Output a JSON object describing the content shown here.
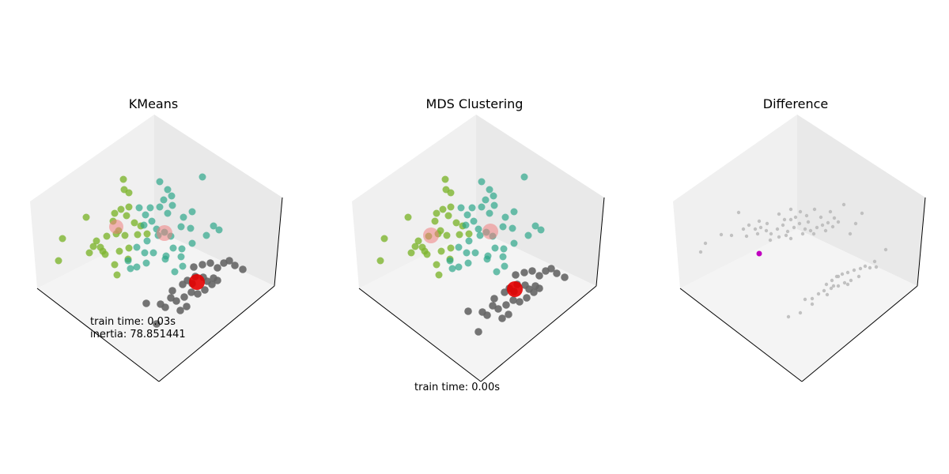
{
  "chart_data": [
    {
      "type": "scatter",
      "projection": "3d",
      "title": "KMeans",
      "annotations": [
        "train time: 0.03s",
        "inertia: 78.851441"
      ],
      "cluster_colors": [
        "#7eb530",
        "#2ea68a",
        "#666666"
      ],
      "center_colors": [
        "#f4a3a3",
        "#f4a3a3",
        "#e60000"
      ],
      "grid": false
    },
    {
      "type": "scatter",
      "projection": "3d",
      "title": "MDS Clustering",
      "annotations": [
        "train time: 0.00s"
      ],
      "cluster_colors": [
        "#7eb530",
        "#2ea68a",
        "#666666"
      ],
      "center_colors": [
        "#f4a3a3",
        "#f4a3a3",
        "#e60000"
      ],
      "grid": false
    },
    {
      "type": "scatter",
      "projection": "3d",
      "title": "Difference",
      "annotations": [],
      "point_colors": {
        "same": "#bbbbbb",
        "different": "#c000c0"
      },
      "grid": false
    }
  ]
}
